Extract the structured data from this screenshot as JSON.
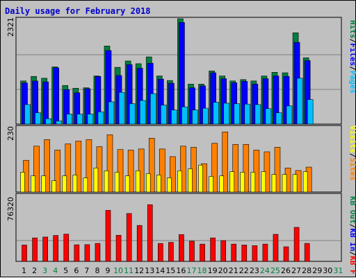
{
  "chart_data": [
    {
      "type": "bar",
      "title": "Daily usage for February 2018",
      "ymax_label": "2321",
      "ylim": [
        0,
        2321
      ],
      "legend_labels": [
        "Pages",
        "Files",
        "Hits"
      ],
      "series_colors": {
        "Hits": "#008040",
        "Files": "#0000ff",
        "Pages": "#00c0ff"
      },
      "days": [
        "1",
        "2",
        "3",
        "4",
        "5",
        "6",
        "7",
        "8",
        "9",
        "10",
        "11",
        "12",
        "13",
        "14",
        "15",
        "16",
        "17",
        "18",
        "19",
        "20",
        "21",
        "22",
        "23",
        "24",
        "25",
        "26",
        "27",
        "28",
        "29",
        "30",
        "31"
      ],
      "weekend_days": [
        "3",
        "4",
        "10",
        "11",
        "17",
        "18",
        "24",
        "25",
        "31"
      ],
      "series": [
        {
          "name": "Hits",
          "values": [
            950,
            1050,
            1010,
            1260,
            850,
            790,
            800,
            1060,
            1720,
            1250,
            1390,
            1330,
            1480,
            1060,
            960,
            2321,
            880,
            880,
            1170,
            1060,
            950,
            980,
            950,
            1060,
            1140,
            1130,
            2010,
            1460
          ]
        },
        {
          "name": "Files",
          "values": [
            905,
            950,
            930,
            1240,
            760,
            690,
            780,
            1050,
            1620,
            1070,
            1310,
            1230,
            1340,
            990,
            900,
            2240,
            800,
            840,
            1130,
            1000,
            910,
            940,
            880,
            1000,
            1060,
            1050,
            1800,
            1400
          ]
        },
        {
          "name": "Pages",
          "values": [
            430,
            250,
            120,
            70,
            220,
            220,
            220,
            270,
            490,
            700,
            450,
            520,
            670,
            420,
            310,
            380,
            310,
            350,
            480,
            460,
            450,
            440,
            430,
            340,
            250,
            400,
            1010,
            540
          ]
        }
      ]
    },
    {
      "type": "bar",
      "ymax_label": "230",
      "ylim": [
        0,
        230
      ],
      "legend_labels": [
        "Visits",
        "Sites"
      ],
      "series_colors": {
        "Sites": "#ff8000",
        "Visits": "#ffff00"
      },
      "series": [
        {
          "name": "Visits",
          "values": [
            70,
            57,
            57,
            40,
            57,
            60,
            50,
            85,
            75,
            70,
            57,
            75,
            65,
            60,
            50,
            75,
            82,
            95,
            55,
            57,
            72,
            70,
            70,
            72,
            62,
            62,
            62,
            72
          ]
        },
        {
          "name": "Sites",
          "values": [
            112,
            162,
            185,
            148,
            170,
            180,
            185,
            160,
            202,
            150,
            148,
            152,
            190,
            152,
            125,
            162,
            158,
            100,
            172,
            212,
            168,
            168,
            148,
            142,
            158,
            85,
            76,
            88
          ]
        }
      ]
    },
    {
      "type": "bar",
      "ymax_label": "76320",
      "ylim": [
        0,
        76320
      ],
      "legend_labels": [
        "KB F",
        "KB In",
        "KB Out"
      ],
      "series_colors": {
        "KB F": "#ff0000",
        "KB In": "#0000ff",
        "KB Out": "#008040"
      },
      "series": [
        {
          "name": "KB F",
          "values": [
            18700,
            26900,
            27900,
            29700,
            31200,
            19000,
            19200,
            20600,
            58500,
            29900,
            54900,
            41200,
            65000,
            20500,
            21800,
            30700,
            23200,
            19800,
            26900,
            23800,
            19800,
            18700,
            18000,
            19800,
            31000,
            16700,
            39000,
            20600
          ]
        }
      ]
    }
  ]
}
